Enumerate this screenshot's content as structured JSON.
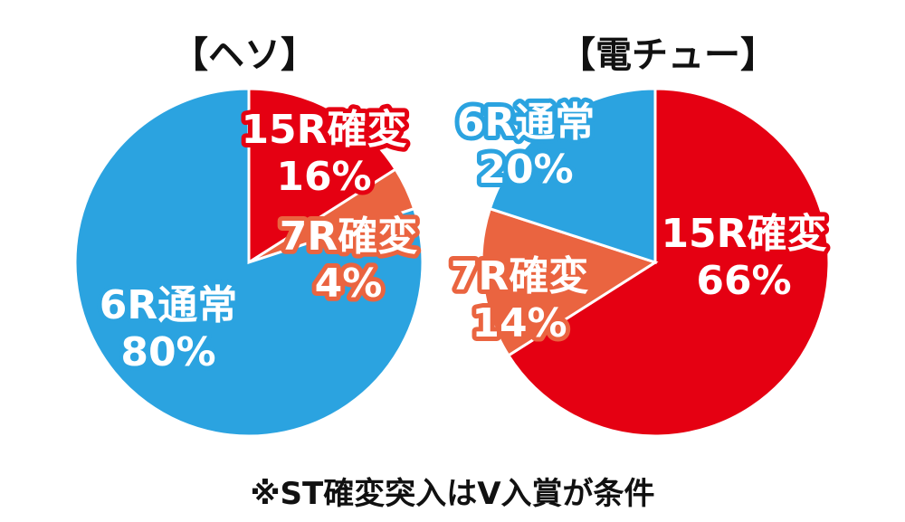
{
  "colors": {
    "kakuhen15": "#e50012",
    "kakuhen7": "#ea6440",
    "tsujo6": "#2ba3e0"
  },
  "chart_data": [
    {
      "type": "pie",
      "title": "【ヘソ】",
      "start_angle_deg": 0,
      "direction": "clockwise",
      "slices": [
        {
          "name": "15R確変",
          "value": 16,
          "value_label": "16%",
          "color": "#e50012"
        },
        {
          "name": "7R確変",
          "value": 4,
          "value_label": "4%",
          "color": "#ea6440"
        },
        {
          "name": "6R通常",
          "value": 80,
          "value_label": "80%",
          "color": "#2ba3e0"
        }
      ]
    },
    {
      "type": "pie",
      "title": "【電チュー】",
      "start_angle_deg": 0,
      "direction": "clockwise",
      "slices": [
        {
          "name": "15R確変",
          "value": 66,
          "value_label": "66%",
          "color": "#e50012"
        },
        {
          "name": "7R確変",
          "value": 14,
          "value_label": "14%",
          "color": "#ea6440"
        },
        {
          "name": "6R通常",
          "value": 20,
          "value_label": "20%",
          "color": "#2ba3e0"
        }
      ]
    }
  ],
  "footnote": "※ST確変突入はV入賞が条件"
}
